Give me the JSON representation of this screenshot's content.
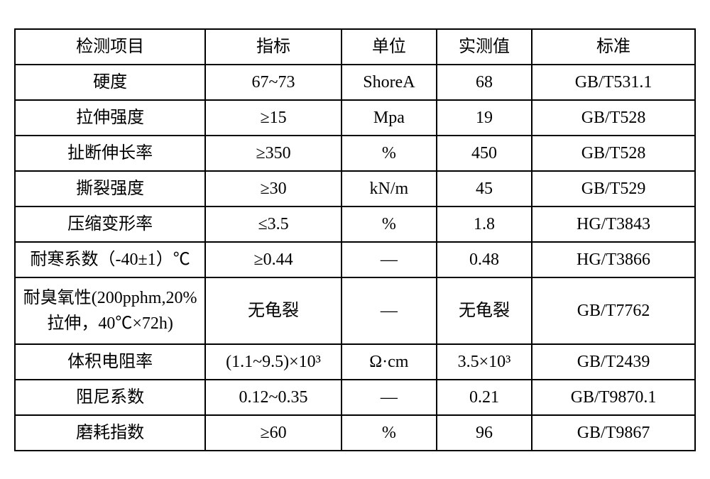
{
  "table": {
    "columns": [
      "检测项目",
      "指标",
      "单位",
      "实测值",
      "标准"
    ],
    "rows": [
      [
        "硬度",
        "67~73",
        "ShoreA",
        "68",
        "GB/T531.1"
      ],
      [
        "拉伸强度",
        "≥15",
        "Mpa",
        "19",
        "GB/T528"
      ],
      [
        "扯断伸长率",
        "≥350",
        "%",
        "450",
        "GB/T528"
      ],
      [
        "撕裂强度",
        "≥30",
        "kN/m",
        "45",
        "GB/T529"
      ],
      [
        "压缩变形率",
        "≤3.5",
        "%",
        "1.8",
        "HG/T3843"
      ],
      [
        "耐寒系数（-40±1）℃",
        "≥0.44",
        "—",
        "0.48",
        "HG/T3866"
      ],
      [
        "耐臭氧性(200pphm,20%拉伸，40℃×72h)",
        "无龟裂",
        "—",
        "无龟裂",
        "GB/T7762"
      ],
      [
        "体积电阻率",
        "(1.1~9.5)×10³",
        "Ω·cm",
        "3.5×10³",
        "GB/T2439"
      ],
      [
        "阻尼系数",
        "0.12~0.35",
        "—",
        "0.21",
        "GB/T9870.1"
      ],
      [
        "磨耗指数",
        "≥60",
        "%",
        "96",
        "GB/T9867"
      ]
    ],
    "multiline_row_index": 6,
    "col_widths_pct": [
      28,
      20,
      14,
      14,
      24
    ],
    "font_size_pt": 18,
    "border_color": "#000000",
    "text_color": "#000000",
    "background_color": "#ffffff"
  }
}
